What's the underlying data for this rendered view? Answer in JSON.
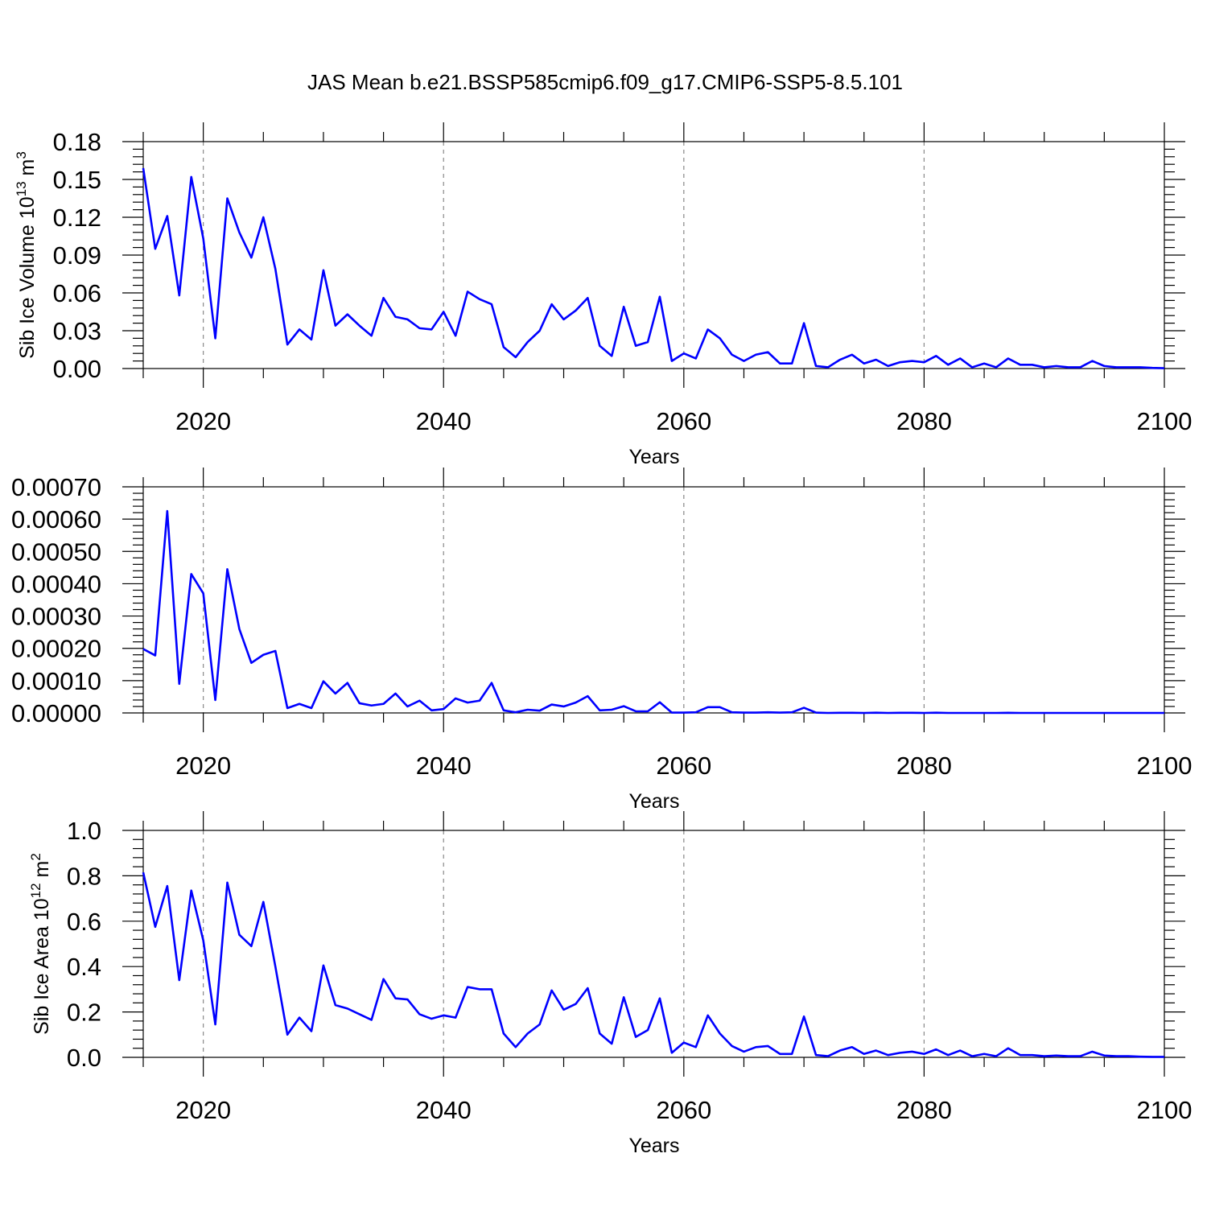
{
  "title": "JAS Mean b.e21.BSSP585cmip6.f09_g17.CMIP6-SSP5-8.5.101",
  "colors": {
    "line": "#0000ff",
    "grid": "#888888",
    "axis": "#000000"
  },
  "chart_data": [
    {
      "type": "line",
      "title": "JAS Mean b.e21.BSSP585cmip6.f09_g17.CMIP6-SSP5-8.5.101",
      "xlabel": "Years",
      "ylabel": "Sib Ice Volume 10",
      "ylabel_sup": "13",
      "ylabel_unit": " m",
      "ylabel_unit_sup": "3",
      "xlim": [
        2015,
        2100
      ],
      "ylim": [
        0,
        0.18
      ],
      "xticks": [
        "2020",
        "2040",
        "2060",
        "2080",
        "2100"
      ],
      "yticks": [
        "0.00",
        "0.03",
        "0.06",
        "0.09",
        "0.12",
        "0.15",
        "0.18"
      ],
      "grid": "vertical dashed at major x ticks",
      "x_start": 2015,
      "series": [
        {
          "values": [
            0.159,
            0.095,
            0.121,
            0.058,
            0.152,
            0.103,
            0.024,
            0.135,
            0.108,
            0.088,
            0.12,
            0.079,
            0.019,
            0.031,
            0.023,
            0.078,
            0.034,
            0.043,
            0.034,
            0.026,
            0.056,
            0.041,
            0.039,
            0.032,
            0.031,
            0.045,
            0.026,
            0.061,
            0.055,
            0.051,
            0.017,
            0.009,
            0.021,
            0.03,
            0.051,
            0.039,
            0.046,
            0.056,
            0.018,
            0.01,
            0.049,
            0.018,
            0.021,
            0.057,
            0.006,
            0.012,
            0.008,
            0.031,
            0.024,
            0.011,
            0.006,
            0.011,
            0.013,
            0.004,
            0.004,
            0.036,
            0.002,
            0.001,
            0.007,
            0.011,
            0.004,
            0.007,
            0.002,
            0.005,
            0.006,
            0.005,
            0.01,
            0.003,
            0.008,
            0.001,
            0.004,
            0.001,
            0.008,
            0.003,
            0.003,
            0.001,
            0.002,
            0.001,
            0.001,
            0.006,
            0.002,
            0.001,
            0.001,
            0.001,
            0.0005,
            0.0003
          ]
        }
      ]
    },
    {
      "type": "line",
      "xlabel": "Years",
      "ylabel": "",
      "xlim": [
        2015,
        2100
      ],
      "ylim": [
        0,
        0.0007
      ],
      "xticks": [
        "2020",
        "2040",
        "2060",
        "2080",
        "2100"
      ],
      "yticks": [
        "0.00000",
        "0.00010",
        "0.00020",
        "0.00030",
        "0.00040",
        "0.00050",
        "0.00060",
        "0.00070"
      ],
      "grid": "vertical dashed at major x ticks",
      "x_start": 2015,
      "series": [
        {
          "values": [
            0.000198,
            0.000178,
            0.000625,
            9e-05,
            0.00043,
            0.00037,
            4e-05,
            0.000445,
            0.00026,
            0.000155,
            0.00018,
            0.000192,
            1.5e-05,
            2.8e-05,
            1.5e-05,
            9.8e-05,
            6e-05,
            9.3e-05,
            3e-05,
            2.3e-05,
            2.8e-05,
            6e-05,
            2e-05,
            3.8e-05,
            8e-06,
            1.2e-05,
            4.5e-05,
            3.2e-05,
            3.8e-05,
            9.3e-05,
            8e-06,
            2e-06,
            1e-05,
            7e-06,
            2.6e-05,
            2e-05,
            3.2e-05,
            5.2e-05,
            8e-06,
            1e-05,
            2.1e-05,
            5e-06,
            5e-06,
            3.3e-05,
            1e-06,
            1e-06,
            2e-06,
            1.8e-05,
            1.8e-05,
            2e-06,
            1e-06,
            1e-06,
            2e-06,
            1e-06,
            2e-06,
            1.6e-05,
            1e-06,
            0.0,
            5e-07,
            5e-07,
            0.0,
            8e-07,
            0.0,
            5e-07,
            5e-07,
            0.0,
            8e-07,
            0.0,
            0.0,
            0.0,
            0.0,
            0.0,
            5e-07,
            0.0,
            0.0,
            0.0,
            0.0,
            0.0,
            0.0,
            0.0,
            0.0,
            0.0,
            0.0,
            0.0,
            0.0,
            0.0
          ]
        }
      ]
    },
    {
      "type": "line",
      "xlabel": "Years",
      "ylabel": "Sib Ice Area 10",
      "ylabel_sup": "12",
      "ylabel_unit": " m",
      "ylabel_unit_sup": "2",
      "xlim": [
        2015,
        2100
      ],
      "ylim": [
        0,
        1.0
      ],
      "xticks": [
        "2020",
        "2040",
        "2060",
        "2080",
        "2100"
      ],
      "yticks": [
        "0.0",
        "0.2",
        "0.4",
        "0.6",
        "0.8",
        "1.0"
      ],
      "grid": "vertical dashed at major x ticks",
      "x_start": 2015,
      "series": [
        {
          "values": [
            0.815,
            0.575,
            0.755,
            0.34,
            0.735,
            0.515,
            0.145,
            0.77,
            0.54,
            0.49,
            0.685,
            0.4,
            0.1,
            0.175,
            0.115,
            0.405,
            0.23,
            0.215,
            0.19,
            0.165,
            0.345,
            0.26,
            0.255,
            0.19,
            0.17,
            0.185,
            0.175,
            0.31,
            0.3,
            0.3,
            0.105,
            0.045,
            0.105,
            0.145,
            0.295,
            0.21,
            0.235,
            0.305,
            0.105,
            0.06,
            0.265,
            0.09,
            0.12,
            0.26,
            0.02,
            0.065,
            0.045,
            0.185,
            0.105,
            0.05,
            0.025,
            0.045,
            0.05,
            0.015,
            0.015,
            0.18,
            0.01,
            0.005,
            0.03,
            0.045,
            0.015,
            0.03,
            0.01,
            0.02,
            0.025,
            0.015,
            0.035,
            0.01,
            0.03,
            0.005,
            0.015,
            0.005,
            0.04,
            0.01,
            0.01,
            0.005,
            0.008,
            0.005,
            0.005,
            0.025,
            0.008,
            0.005,
            0.005,
            0.003,
            0.002,
            0.002
          ]
        }
      ]
    }
  ]
}
